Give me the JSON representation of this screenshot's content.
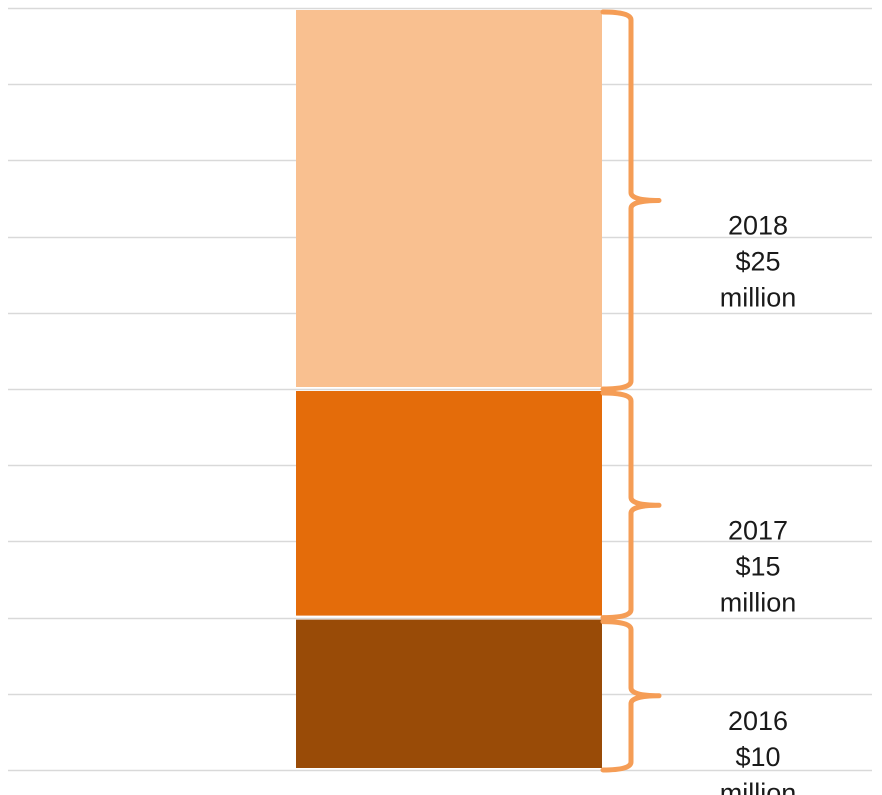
{
  "chart_data": {
    "type": "bar",
    "stacked": true,
    "categories": [
      ""
    ],
    "series": [
      {
        "name": "2016",
        "values": [
          10
        ],
        "color": "#994b07"
      },
      {
        "name": "2017",
        "values": [
          15
        ],
        "color": "#e46c0a"
      },
      {
        "name": "2018",
        "values": [
          25
        ],
        "color": "#f9c090"
      }
    ],
    "segment_labels": [
      {
        "year": "2016",
        "amount": "$10",
        "unit": "million"
      },
      {
        "year": "2017",
        "amount": "$15",
        "unit": "million"
      },
      {
        "year": "2018",
        "amount": "$25",
        "unit": "million"
      }
    ],
    "ylim": [
      0,
      50
    ],
    "grid": true,
    "bracket_color": "#f59d56",
    "grid_color": "#d9d9d9",
    "title": "",
    "xlabel": "",
    "ylabel": ""
  }
}
